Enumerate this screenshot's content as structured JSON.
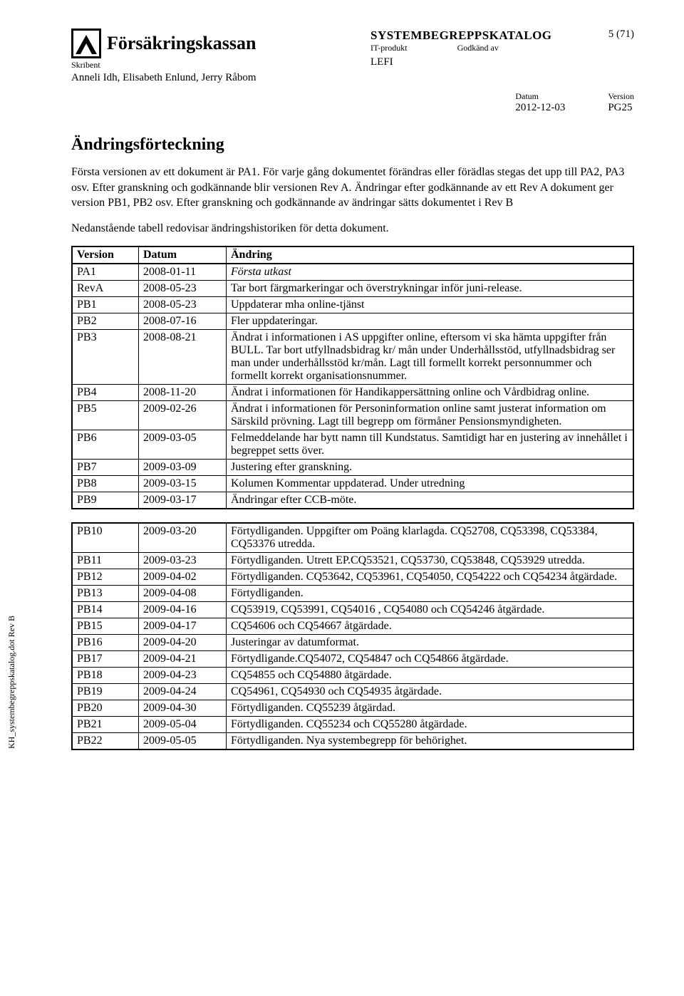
{
  "page_number_label": "5 (71)",
  "org_name": "Försäkringskassan",
  "skribent_label": "Skribent",
  "authors": "Anneli Idh, Elisabeth Enlund, Jerry Råbom",
  "catalog_title": "SYSTEMBEGREPPSKATALOG",
  "it_label": "IT-produkt",
  "godkand_label": "Godkänd av",
  "lefi": "LEFI",
  "datum_label": "Datum",
  "datum_value": "2012-12-03",
  "version_label": "Version",
  "version_value": "PG25",
  "side_label": "KH_systembegreppskatalog.dot  Rev B",
  "section_title": "Ändringsförteckning",
  "intro_p1": "Första versionen av ett dokument är PA1. För varje gång dokumentet förändras eller förädlas stegas det upp till PA2, PA3 osv. Efter granskning och godkännande blir versionen Rev A. Ändringar efter godkännande av ett Rev A dokument ger version PB1, PB2 osv. Efter granskning och godkännande av ändringar sätts dokumentet i Rev B",
  "intro_p2": "Nedanstående tabell redovisar ändringshistoriken för detta dokument.",
  "col_version": "Version",
  "col_datum": "Datum",
  "col_andring": "Ändring",
  "table1": [
    {
      "v": "PA1",
      "d": "2008-01-11",
      "c": "Första utkast",
      "italic": true
    },
    {
      "v": "RevA",
      "d": "2008-05-23",
      "c": "Tar bort färgmarkeringar och överstrykningar inför juni-release."
    },
    {
      "v": "PB1",
      "d": "2008-05-23",
      "c": "Uppdaterar mha online-tjänst"
    },
    {
      "v": "PB2",
      "d": "2008-07-16",
      "c": "Fler uppdateringar."
    },
    {
      "v": "PB3",
      "d": "2008-08-21",
      "c": "Ändrat i informationen i AS uppgifter online, eftersom vi ska hämta uppgifter från BULL. Tar bort utfyllnadsbidrag kr/ mån under Underhållsstöd,  utfyllnadsbidrag ser man under underhållsstöd kr/mån. Lagt till formellt korrekt personnummer och formellt korrekt organisationsnummer."
    },
    {
      "v": "PB4",
      "d": "2008-11-20",
      "c": "Ändrat i informationen för Handikappersättning online och Vårdbidrag online."
    },
    {
      "v": "PB5",
      "d": "2009-02-26",
      "c": "Ändrat i informationen för Personinformation online samt justerat information om Särskild prövning. Lagt till begrepp om förmåner Pensionsmyndigheten."
    },
    {
      "v": "PB6",
      "d": "2009-03-05",
      "c": "Felmeddelande har bytt namn till Kundstatus. Samtidigt har en justering av innehållet i begreppet setts över."
    },
    {
      "v": "PB7",
      "d": "2009-03-09",
      "c": "Justering efter granskning."
    },
    {
      "v": "PB8",
      "d": "2009-03-15",
      "c": "Kolumen Kommentar uppdaterad. Under utredning"
    },
    {
      "v": "PB9",
      "d": "2009-03-17",
      "c": "Ändringar efter CCB-möte."
    }
  ],
  "table2": [
    {
      "v": "PB10",
      "d": "2009-03-20",
      "c": "Förtydliganden. Uppgifter om Poäng klarlagda. CQ52708, CQ53398, CQ53384, CQ53376 utredda."
    },
    {
      "v": "PB11",
      "d": "2009-03-23",
      "c": "Förtydliganden. Utrett EP.CQ53521, CQ53730, CQ53848, CQ53929 utredda."
    },
    {
      "v": "PB12",
      "d": "2009-04-02",
      "c": "Förtydliganden. CQ53642, CQ53961, CQ54050, CQ54222 och CQ54234 åtgärdade."
    },
    {
      "v": "PB13",
      "d": "2009-04-08",
      "c": "Förtydliganden."
    },
    {
      "v": "PB14",
      "d": "2009-04-16",
      "c": "CQ53919, CQ53991, CQ54016 , CQ54080 och CQ54246 åtgärdade."
    },
    {
      "v": "PB15",
      "d": "2009-04-17",
      "c": "CQ54606 och CQ54667 åtgärdade."
    },
    {
      "v": "PB16",
      "d": "2009-04-20",
      "c": "Justeringar av datumformat."
    },
    {
      "v": "PB17",
      "d": "2009-04-21",
      "c": "Förtydligande.CQ54072, CQ54847 och CQ54866 åtgärdade."
    },
    {
      "v": "PB18",
      "d": "2009-04-23",
      "c": "CQ54855 och CQ54880 åtgärdade."
    },
    {
      "v": "PB19",
      "d": "2009-04-24",
      "c": "CQ54961, CQ54930 och CQ54935 åtgärdade."
    },
    {
      "v": "PB20",
      "d": "2009-04-30",
      "c": "Förtydliganden. CQ55239 åtgärdad."
    },
    {
      "v": "PB21",
      "d": "2009-05-04",
      "c": "Förtydliganden. CQ55234 och CQ55280 åtgärdade."
    },
    {
      "v": "PB22",
      "d": "2009-05-05",
      "c": "Förtydliganden. Nya systembegrepp för behörighet."
    }
  ]
}
